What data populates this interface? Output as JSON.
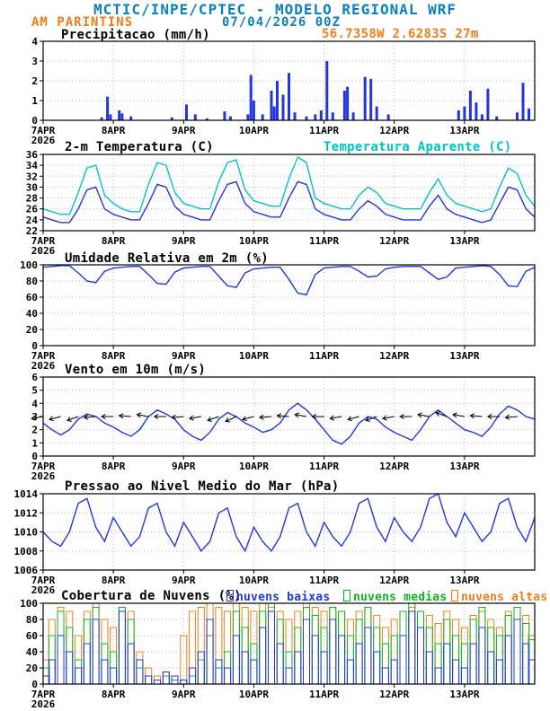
{
  "header": {
    "title": "MCTIC/INPE/CPTEC - MODELO REGIONAL WRF",
    "station": "AM PARINTINS",
    "run": "07/04/2026 00Z",
    "location": "56.7358W 2.6283S 27m"
  },
  "colors": {
    "header": "#0a80c0",
    "orange": "#f07d1a",
    "blue": "#2236dd",
    "cyan": "#00c3c3",
    "green": "#0ab520",
    "grid": "#b2b2c8"
  },
  "x_axis": {
    "tick_labels": [
      "7APR",
      "8APR",
      "9APR",
      "10APR",
      "11APR",
      "12APR",
      "13APR"
    ],
    "year_label": "2026",
    "hours_total": 168
  },
  "chart_data": [
    {
      "id": "precipitacao",
      "type": "bar",
      "title": "Precipitacao (mm/h)",
      "ylim": [
        0,
        4
      ],
      "yticks": [
        0,
        1,
        2,
        3,
        4
      ],
      "points": [
        [
          20,
          0.15
        ],
        [
          22,
          1.2
        ],
        [
          23,
          0.3
        ],
        [
          26,
          0.5
        ],
        [
          27,
          0.35
        ],
        [
          30,
          0.2
        ],
        [
          44,
          0.15
        ],
        [
          49,
          0.8
        ],
        [
          52,
          0.3
        ],
        [
          56,
          0.1
        ],
        [
          62,
          0.45
        ],
        [
          64,
          0.2
        ],
        [
          70,
          0.3
        ],
        [
          71,
          2.3
        ],
        [
          72,
          1.0
        ],
        [
          75,
          0.3
        ],
        [
          78,
          1.5
        ],
        [
          79,
          0.7
        ],
        [
          80,
          2.0
        ],
        [
          82,
          1.3
        ],
        [
          84,
          2.4
        ],
        [
          86,
          0.4
        ],
        [
          90,
          0.2
        ],
        [
          93,
          0.3
        ],
        [
          95,
          0.5
        ],
        [
          97,
          3.0
        ],
        [
          99,
          0.4
        ],
        [
          103,
          1.5
        ],
        [
          104,
          1.7
        ],
        [
          106,
          0.4
        ],
        [
          110,
          2.2
        ],
        [
          112,
          2.1
        ],
        [
          114,
          0.7
        ],
        [
          118,
          0.3
        ],
        [
          142,
          0.5
        ],
        [
          144,
          0.7
        ],
        [
          146,
          1.5
        ],
        [
          148,
          0.9
        ],
        [
          150,
          0.3
        ],
        [
          152,
          1.6
        ],
        [
          155,
          0.2
        ],
        [
          162,
          0.4
        ],
        [
          164,
          1.9
        ],
        [
          166,
          0.6
        ]
      ]
    },
    {
      "id": "temperatura",
      "type": "line",
      "title": "2-m Temperatura (C)",
      "title2": "Temperatura Aparente (C)",
      "ylim": [
        22,
        36
      ],
      "yticks": [
        22,
        24,
        26,
        28,
        30,
        32,
        34,
        36
      ],
      "step_h": 3,
      "series": [
        {
          "name": "2-m Temperatura (C)",
          "color_key": "blue",
          "values": [
            24.5,
            24,
            23.5,
            23.5,
            26,
            29.5,
            30,
            26,
            25,
            24.5,
            24,
            24,
            27,
            30.5,
            30,
            26.5,
            25,
            24.5,
            24,
            24,
            27.5,
            30.5,
            31,
            27,
            25.5,
            25,
            24.5,
            24.5,
            28,
            31,
            30.5,
            26,
            25,
            24.5,
            24,
            24,
            26,
            27.5,
            26.5,
            25,
            24.5,
            24,
            24,
            24,
            26.5,
            28.5,
            26,
            25,
            24.5,
            24,
            23.5,
            24,
            27,
            30,
            29.5,
            26,
            24.5
          ]
        },
        {
          "name": "Temperatura Aparente (C)",
          "color_key": "cyan",
          "values": [
            26,
            25.5,
            25,
            25,
            29,
            33.5,
            34,
            28.5,
            27,
            26,
            25.5,
            25.5,
            30.5,
            34.5,
            34,
            29,
            27,
            26.5,
            26,
            26,
            31,
            34.5,
            35,
            29.5,
            27.5,
            27,
            26.5,
            26.5,
            31.5,
            35.5,
            34.5,
            28,
            27,
            26.5,
            26,
            26,
            28.5,
            30,
            29,
            27,
            26.5,
            26,
            26,
            26,
            29,
            31.5,
            28.5,
            27,
            26.5,
            26,
            25.5,
            26,
            30,
            33.5,
            32.5,
            28.5,
            26.5
          ]
        }
      ]
    },
    {
      "id": "umidade",
      "type": "line",
      "title": "Umidade Relativa em 2m (%)",
      "ylim": [
        0,
        100
      ],
      "yticks": [
        0,
        20,
        40,
        60,
        80,
        100
      ],
      "step_h": 3,
      "series": [
        {
          "name": "Umidade Relativa em 2m (%)",
          "color_key": "blue",
          "values": [
            97,
            98,
            99,
            99,
            90,
            80,
            78,
            92,
            96,
            97,
            98,
            98,
            88,
            77,
            76,
            91,
            96,
            97,
            98,
            98,
            86,
            74,
            72,
            90,
            95,
            96,
            97,
            97,
            82,
            65,
            63,
            88,
            96,
            97,
            98,
            98,
            92,
            85,
            86,
            95,
            97,
            98,
            98,
            98,
            90,
            82,
            85,
            96,
            97,
            98,
            99,
            98,
            88,
            74,
            73,
            92,
            97
          ]
        }
      ]
    },
    {
      "id": "vento",
      "type": "line",
      "title": "Vento em 10m (m/s)",
      "ylim": [
        0,
        6
      ],
      "yticks": [
        0,
        1,
        2,
        3,
        4,
        5,
        6
      ],
      "step_h": 3,
      "series": [
        {
          "name": "Vento em 10m (m/s)",
          "color_key": "blue",
          "values": [
            2.5,
            2,
            1.6,
            2,
            2.8,
            3.2,
            3,
            2.5,
            2.2,
            1.8,
            1.5,
            2,
            3,
            3.5,
            3.2,
            2.8,
            2,
            1.5,
            1.2,
            1.8,
            2.8,
            3.3,
            3,
            2.5,
            2.2,
            1.8,
            2,
            2.5,
            3.5,
            4,
            3.5,
            2.8,
            2,
            1.2,
            0.9,
            1.5,
            2.5,
            3,
            2.8,
            2.2,
            1.8,
            1.5,
            1.2,
            2,
            3,
            3.5,
            3,
            2.5,
            2,
            1.8,
            1.5,
            2.2,
            3.2,
            3.8,
            3.5,
            3,
            2.8
          ]
        }
      ],
      "barbs": {
        "step_h": 6,
        "y": 3,
        "dirs": [
          80,
          75,
          70,
          85,
          90,
          95,
          100,
          90,
          85,
          80,
          70,
          65,
          75,
          85,
          95,
          100,
          90,
          80,
          75,
          70,
          80,
          90,
          100,
          110,
          100,
          95,
          90,
          85
        ]
      }
    },
    {
      "id": "pressao",
      "type": "line",
      "title": "Pressao ao Nivel Medio do Mar (hPa)",
      "ylim": [
        1006,
        1014
      ],
      "yticks": [
        1006,
        1008,
        1010,
        1012,
        1014
      ],
      "step_h": 3,
      "series": [
        {
          "name": "Pressao ao Nivel Medio do Mar (hPa)",
          "color_key": "blue",
          "values": [
            1010,
            1009,
            1008.5,
            1010,
            1013,
            1013.5,
            1010.5,
            1009,
            1011.5,
            1010,
            1008.5,
            1009.5,
            1012.5,
            1013,
            1010,
            1008.5,
            1011,
            1009.5,
            1008,
            1009,
            1012,
            1012.5,
            1009.5,
            1008,
            1010.5,
            1009,
            1008,
            1009.5,
            1012.5,
            1013,
            1010,
            1008.5,
            1011,
            1009.5,
            1008.5,
            1010,
            1013,
            1013.5,
            1010.5,
            1009,
            1011.5,
            1010,
            1009,
            1010.5,
            1013.5,
            1014,
            1011,
            1009.5,
            1012,
            1010.5,
            1009,
            1010,
            1013,
            1013.5,
            1010.5,
            1009,
            1011.5
          ]
        }
      ]
    },
    {
      "id": "nuvens",
      "type": "bar-outline",
      "title": "Cobertura de Nuvens (%)",
      "ylim": [
        0,
        100
      ],
      "yticks": [
        0,
        20,
        40,
        60,
        80,
        100
      ],
      "step_h": 3,
      "series": [
        {
          "name": "nuvens baixas",
          "color_key": "blue",
          "values": [
            10,
            30,
            60,
            40,
            20,
            50,
            80,
            30,
            20,
            90,
            50,
            30,
            10,
            5,
            15,
            10,
            5,
            20,
            40,
            80,
            30,
            20,
            60,
            40,
            30,
            70,
            90,
            50,
            20,
            40,
            80,
            60,
            40,
            80,
            60,
            30,
            50,
            70,
            40,
            20,
            30,
            60,
            90,
            70,
            40,
            20,
            50,
            30,
            20,
            50,
            70,
            40,
            30,
            60,
            80,
            50,
            30
          ]
        },
        {
          "name": "nuvens medias",
          "color_key": "green",
          "values": [
            20,
            60,
            90,
            70,
            30,
            80,
            95,
            50,
            40,
            95,
            80,
            20,
            10,
            5,
            10,
            5,
            5,
            10,
            30,
            60,
            20,
            40,
            90,
            70,
            50,
            90,
            100,
            80,
            40,
            70,
            95,
            85,
            70,
            95,
            90,
            60,
            80,
            95,
            70,
            50,
            60,
            90,
            100,
            90,
            70,
            50,
            80,
            60,
            50,
            80,
            95,
            70,
            60,
            85,
            95,
            75,
            55
          ]
        },
        {
          "name": "nuvens altas",
          "color_key": "orange",
          "values": [
            30,
            80,
            95,
            90,
            60,
            90,
            100,
            80,
            70,
            95,
            90,
            40,
            20,
            10,
            15,
            10,
            60,
            90,
            95,
            100,
            95,
            90,
            100,
            95,
            90,
            100,
            95,
            90,
            80,
            90,
            100,
            95,
            90,
            95,
            90,
            80,
            90,
            95,
            85,
            70,
            80,
            90,
            95,
            90,
            85,
            75,
            90,
            80,
            70,
            85,
            90,
            80,
            70,
            90,
            95,
            85,
            60
          ]
        }
      ]
    }
  ]
}
